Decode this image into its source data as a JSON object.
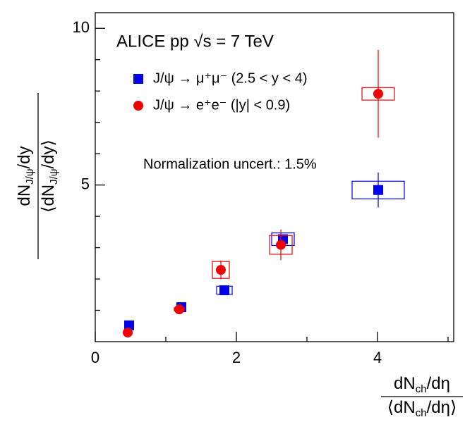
{
  "chart_data": {
    "type": "scatter",
    "title": "ALICE pp √s = 7 TeV",
    "annotation": "Normalization uncert.: 1.5%",
    "ylabel_num": [
      "dN",
      "J/ψ",
      "/dy"
    ],
    "ylabel_den": [
      "⟨dN",
      "J/ψ",
      "/dy⟩"
    ],
    "xlabel_num": [
      "dN",
      "ch",
      "/dη"
    ],
    "xlabel_den": [
      "⟨dN",
      "ch",
      "/dη⟩"
    ],
    "xlim": [
      0,
      5.08
    ],
    "ylim": [
      0,
      10.5
    ],
    "xticks": [
      0,
      2,
      4
    ],
    "xminor_ticks": [
      1,
      3,
      5
    ],
    "yticks": [
      5,
      10
    ],
    "yminor_ticks": [
      1,
      2,
      3,
      4,
      6,
      7,
      8,
      9
    ],
    "series": [
      {
        "name": "J/ψ → μ⁺μ⁻ (2.5 < y < 4)",
        "color": "#0000ee",
        "marker": "square",
        "x": [
          0.48,
          1.22,
          1.83,
          2.66,
          4.01
        ],
        "values": [
          0.52,
          1.1,
          1.64,
          3.27,
          4.84
        ],
        "errors": [
          0.03,
          0.05,
          0.06,
          0.15,
          0.56
        ],
        "sys_x": [
          0.04,
          0.06,
          0.11,
          0.16,
          0.37
        ],
        "sys_y": [
          0.03,
          0.05,
          0.13,
          0.2,
          0.28
        ]
      },
      {
        "name": "J/ψ → e⁺e⁻ (|y| < 0.9)",
        "color": "#ee0000",
        "marker": "circle",
        "x": [
          0.46,
          1.19,
          1.78,
          2.63,
          4.01
        ],
        "values": [
          0.29,
          1.03,
          2.29,
          3.09,
          7.91
        ],
        "errors": [
          0.05,
          0.07,
          0.3,
          0.49,
          1.4
        ],
        "sys_x": [
          0.03,
          0.07,
          0.12,
          0.16,
          0.23
        ],
        "sys_y": [
          0.03,
          0.05,
          0.27,
          0.3,
          0.2
        ]
      }
    ]
  }
}
